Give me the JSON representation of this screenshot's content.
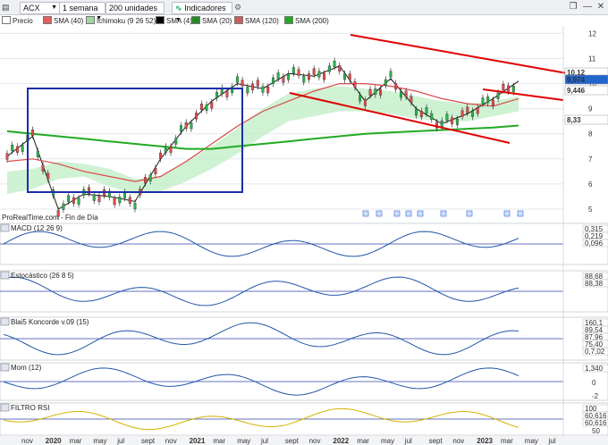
{
  "toolbar": {
    "symbol": "ACX",
    "period": "1 semana",
    "units": "200 unidades",
    "indicators_button": "Indicadores"
  },
  "legend": [
    {
      "label": "Precio",
      "color": "#ffffff"
    },
    {
      "label": "SMA (40)",
      "color": "#e06060"
    },
    {
      "label": "Ichimoku (9 26 52)",
      "color": "#a0d8a0"
    },
    {
      "label": "SMA (4)",
      "color": "#000000"
    },
    {
      "label": "SMA (20)",
      "color": "#228b22"
    },
    {
      "label": "SMA (120)",
      "color": "#cd5c5c"
    },
    {
      "label": "SMA (200)",
      "color": "#22aa22"
    }
  ],
  "watermark": "ProRealTime.com - Fin de Día",
  "price_axis": {
    "ticks": [
      "12",
      "11",
      "10",
      "9",
      "8",
      "7",
      "6",
      "5"
    ],
    "labels": [
      {
        "text": "10,12",
        "color": "#ffffff",
        "bg": "#ffffff",
        "fg": "#333333"
      },
      {
        "text": "9,974",
        "color": "#2266cc",
        "bg": "#2266cc",
        "fg": "#ffffff"
      },
      {
        "text": "9,446",
        "color": "#cc3333",
        "bg": "#ffffff",
        "fg": "#333333"
      },
      {
        "text": "8,33",
        "color": "#22aa22",
        "bg": "#ffffff",
        "fg": "#22aa22"
      }
    ]
  },
  "panels": [
    {
      "title": "MACD (12 26 9)",
      "values": [
        "0,315",
        "0,219",
        "0,096"
      ],
      "ticks": [
        "0"
      ]
    },
    {
      "title": "Estocástico (26 8 5)",
      "values": [
        "88,68",
        "88,38"
      ],
      "ticks": [
        "50"
      ]
    },
    {
      "title": "Blai5 Koncorde v.09 (15)",
      "values": [
        "160,1",
        "89,54",
        "87,96",
        "75,40",
        "0,7,02"
      ],
      "ticks": [
        "0"
      ]
    },
    {
      "title": "Mom (12)",
      "values": [
        "1,340"
      ],
      "ticks": [
        "2",
        "0",
        "-2"
      ]
    },
    {
      "title": "FILTRO RSI",
      "values": [
        "100",
        "60,616",
        "60,616"
      ],
      "ticks": [
        "100",
        "50"
      ]
    }
  ],
  "x_axis": {
    "labels": [
      "nov",
      "2020",
      "mar",
      "may",
      "jul",
      "sept",
      "nov",
      "2021",
      "mar",
      "may",
      "jul",
      "sept",
      "nov",
      "2022",
      "mar",
      "may",
      "jul",
      "sept",
      "nov",
      "2023",
      "mar",
      "may",
      "jul"
    ],
    "bold": [
      "2020",
      "2021",
      "2022",
      "2023"
    ]
  },
  "chart_data": {
    "type": "line",
    "title": "ACX",
    "subtitle": "1 semana · 200 unidades",
    "ylim": [
      4.5,
      12.3
    ],
    "x": [
      "2019-11",
      "2020-01",
      "2020-03",
      "2020-05",
      "2020-07",
      "2020-09",
      "2020-11",
      "2021-01",
      "2021-03",
      "2021-05",
      "2021-07",
      "2021-09",
      "2021-11",
      "2022-01",
      "2022-03",
      "2022-05",
      "2022-07",
      "2022-09",
      "2022-11",
      "2023-01",
      "2023-03"
    ],
    "series": [
      {
        "name": "Precio",
        "values": [
          7.1,
          7.9,
          5.0,
          5.6,
          5.5,
          5.3,
          7.0,
          8.3,
          9.3,
          10.0,
          9.8,
          10.4,
          10.3,
          10.7,
          9.3,
          10.2,
          9.0,
          8.4,
          8.8,
          9.4,
          10.1
        ]
      },
      {
        "name": "SMA (40)",
        "values": [
          6.9,
          7.0,
          6.8,
          6.5,
          6.3,
          6.1,
          6.3,
          6.9,
          7.6,
          8.3,
          8.9,
          9.3,
          9.7,
          10.0,
          10.0,
          9.9,
          9.7,
          9.4,
          9.2,
          9.1,
          9.4
        ]
      },
      {
        "name": "SMA (200)",
        "values": [
          8.1,
          8.0,
          7.9,
          7.8,
          7.7,
          7.6,
          7.5,
          7.4,
          7.4,
          7.5,
          7.6,
          7.7,
          7.8,
          7.9,
          8.0,
          8.05,
          8.1,
          8.15,
          8.2,
          8.25,
          8.33
        ]
      }
    ],
    "last_values": {
      "close": 9.974,
      "sma40": 9.446,
      "sma200": 8.33,
      "high": 10.12
    }
  }
}
